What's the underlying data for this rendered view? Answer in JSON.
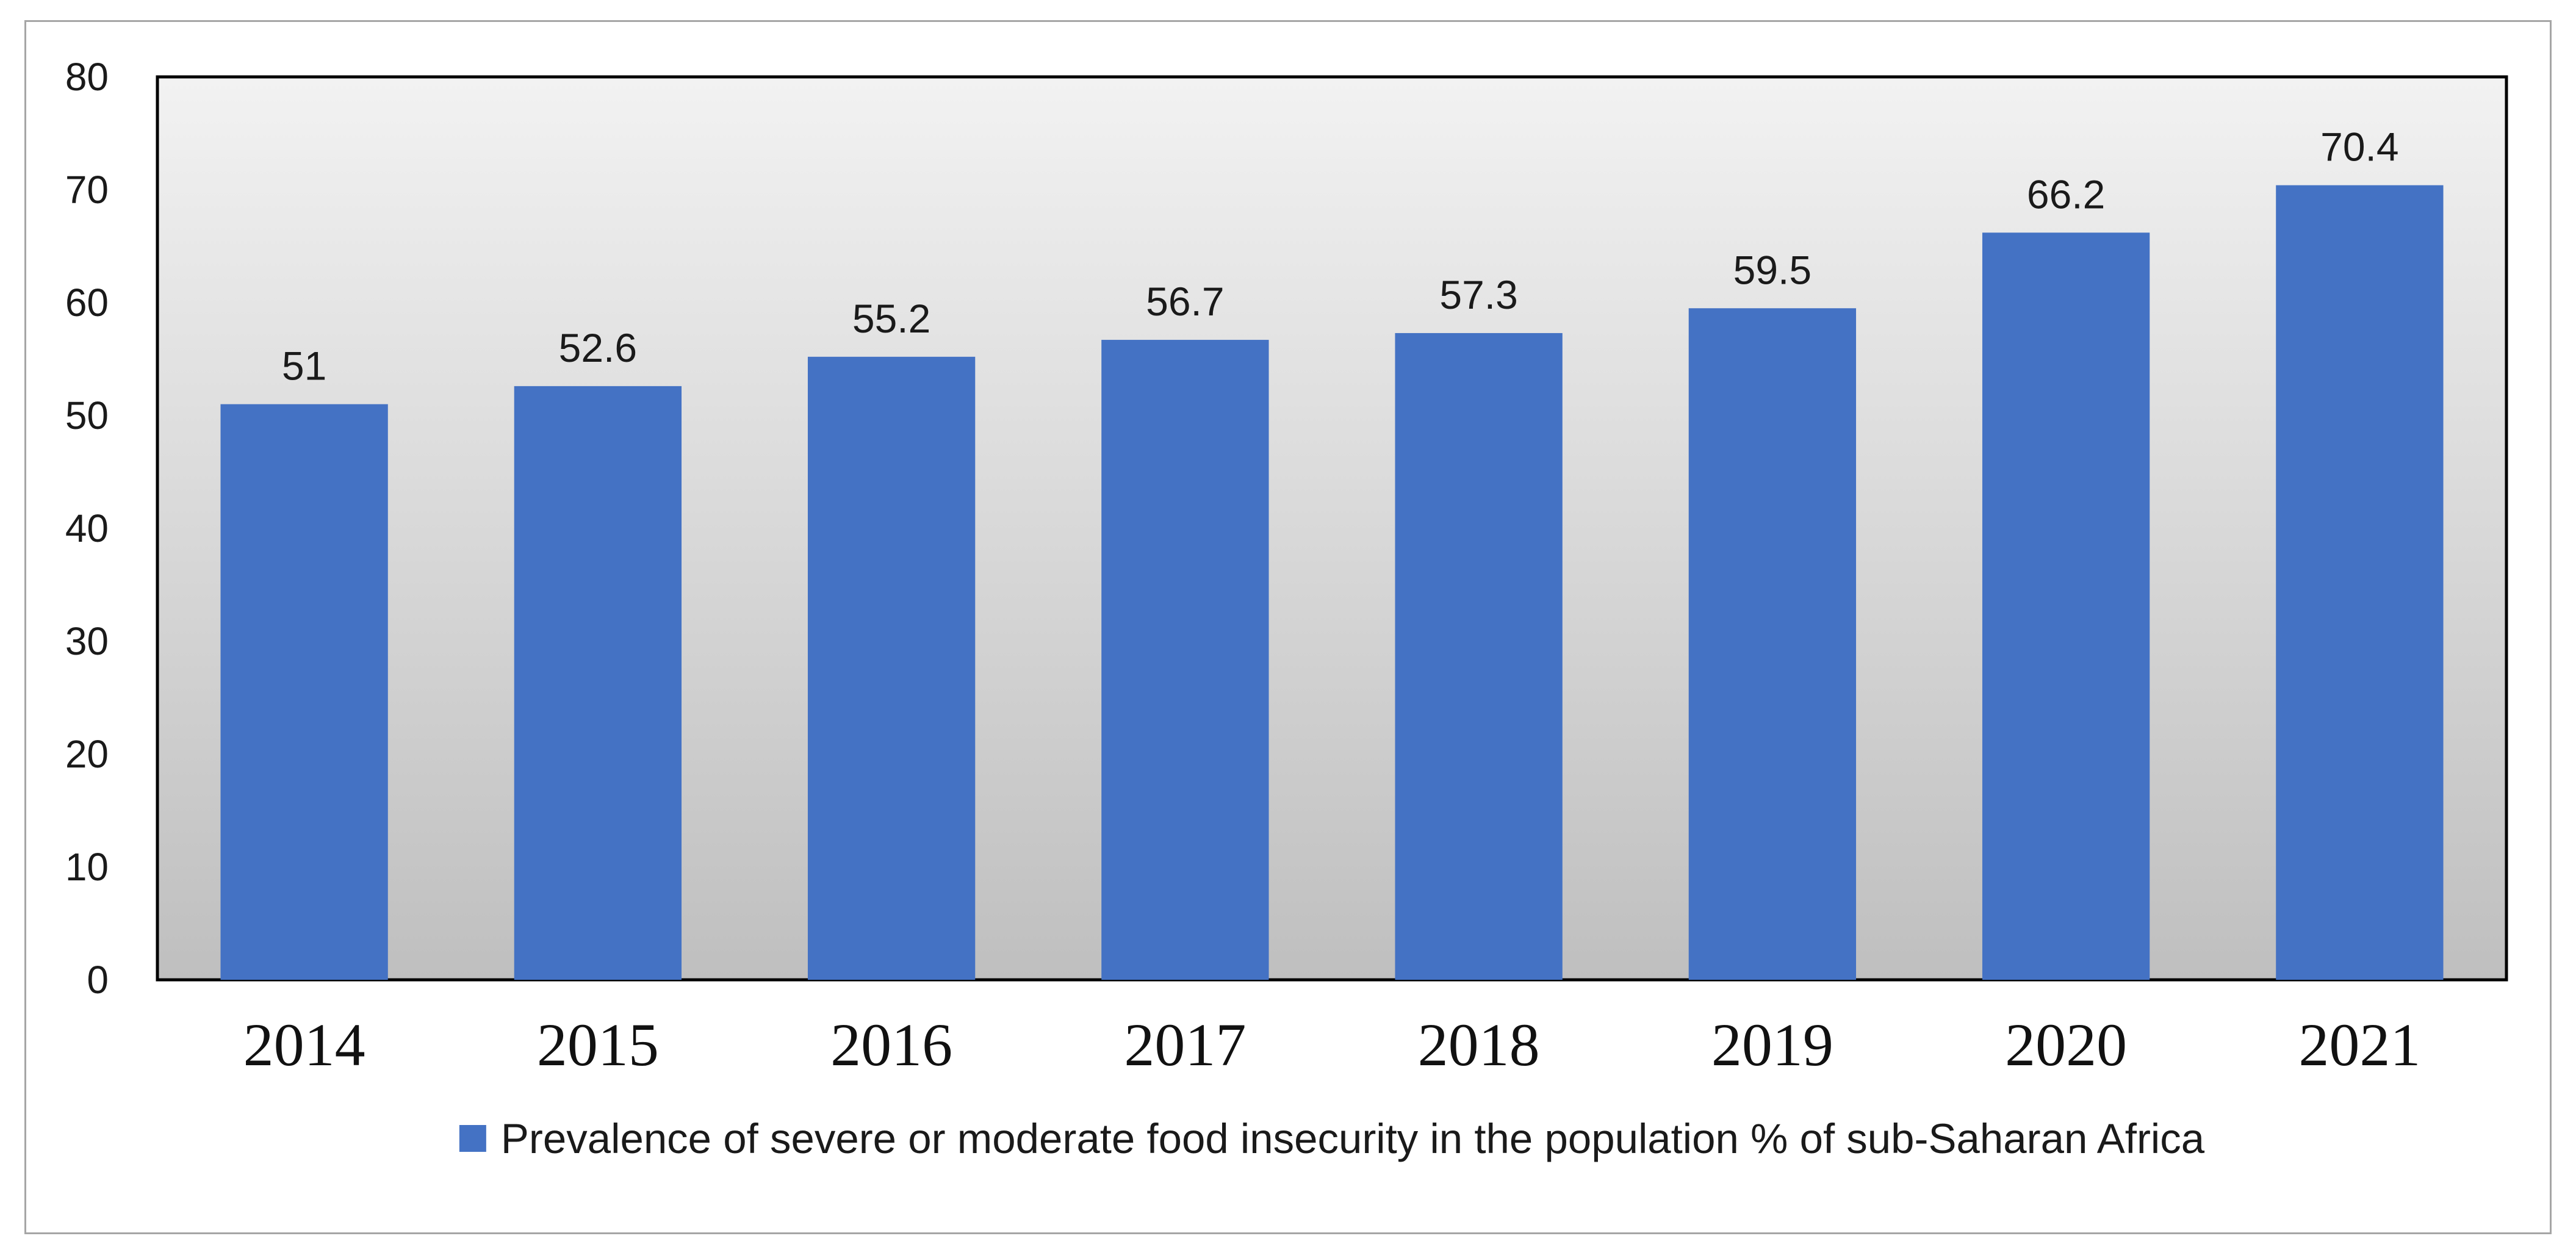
{
  "chart_data": {
    "type": "bar",
    "title": "",
    "xlabel": "",
    "ylabel": "",
    "categories": [
      "2014",
      "2015",
      "2016",
      "2017",
      "2018",
      "2019",
      "2020",
      "2021"
    ],
    "series": [
      {
        "name": "Prevalence of severe or moderate food insecurity in the population % of sub-Saharan Africa",
        "values": [
          51,
          52.6,
          55.2,
          56.7,
          57.3,
          59.5,
          66.2,
          70.4
        ],
        "labels": [
          "51",
          "52.6",
          "55.2",
          "56.7",
          "57.3",
          "59.5",
          "66.2",
          "70.4"
        ],
        "color": "#4472c4"
      }
    ],
    "ylim": [
      0,
      80
    ],
    "yticks": [
      0,
      10,
      20,
      30,
      40,
      50,
      60,
      70,
      80
    ],
    "ytick_labels": [
      "0",
      "10",
      "20",
      "30",
      "40",
      "50",
      "60",
      "70",
      "80"
    ],
    "grid": false,
    "legend_position": "bottom",
    "plot_background": "gradient-grey"
  },
  "colors": {
    "bar": "#4472c4",
    "plot_gradient_top": "#f2f2f2",
    "plot_gradient_bottom": "#bfbfbf",
    "frame_border": "#a6a6a6"
  }
}
